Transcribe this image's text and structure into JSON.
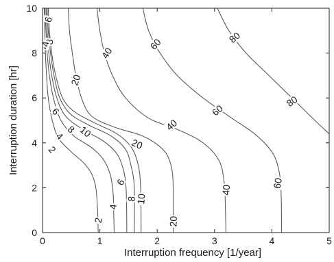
{
  "chart_data": {
    "type": "contour",
    "xlabel": "Interruption frequency [1/year]",
    "ylabel": "Interruption duration [hr]",
    "xlim": [
      0,
      5
    ],
    "ylim": [
      0,
      10
    ],
    "xticks": [
      "0",
      "1",
      "2",
      "3",
      "4",
      "5"
    ],
    "yticks": [
      "0",
      "2",
      "4",
      "6",
      "8",
      "10"
    ],
    "grid": false,
    "contours": [
      {
        "level": "2",
        "points": [
          [
            0.03,
            10
          ],
          [
            0.04,
            9
          ],
          [
            0.05,
            8
          ],
          [
            0.07,
            7
          ],
          [
            0.1,
            6
          ],
          [
            0.17,
            5
          ],
          [
            0.28,
            4.2
          ],
          [
            0.5,
            3.6
          ],
          [
            0.72,
            3.1
          ],
          [
            0.86,
            2.6
          ],
          [
            0.93,
            2.0
          ],
          [
            0.96,
            1.0
          ],
          [
            0.97,
            0
          ]
        ],
        "labels": [
          {
            "text": "2",
            "x": 0.17,
            "y": 3.7,
            "rot": 50
          },
          {
            "text": "2",
            "x": 0.97,
            "y": 0.55,
            "rot": -80
          }
        ]
      },
      {
        "level": "4",
        "points": [
          [
            0.04,
            10
          ],
          [
            0.06,
            9
          ],
          [
            0.08,
            8
          ],
          [
            0.12,
            7
          ],
          [
            0.19,
            6
          ],
          [
            0.32,
            5
          ],
          [
            0.55,
            4.3
          ],
          [
            0.85,
            3.8
          ],
          [
            1.05,
            3.3
          ],
          [
            1.18,
            2.6
          ],
          [
            1.23,
            1.8
          ],
          [
            1.24,
            1.0
          ],
          [
            1.25,
            0
          ]
        ],
        "labels": [
          {
            "text": "4",
            "x": 0.3,
            "y": 4.3,
            "rot": 45
          },
          {
            "text": "4",
            "x": 1.23,
            "y": 1.15,
            "rot": -85
          }
        ]
      },
      {
        "level": "6",
        "points": [
          [
            0.06,
            10
          ],
          [
            0.08,
            9
          ],
          [
            0.11,
            8
          ],
          [
            0.16,
            7
          ],
          [
            0.25,
            6
          ],
          [
            0.4,
            5.2
          ],
          [
            0.7,
            4.6
          ],
          [
            1.05,
            4.1
          ],
          [
            1.3,
            3.5
          ],
          [
            1.42,
            2.7
          ],
          [
            1.46,
            1.8
          ],
          [
            1.47,
            0
          ]
        ],
        "labels": [
          {
            "text": "6",
            "x": 0.1,
            "y": 9.5,
            "rot": -75
          },
          {
            "text": "6",
            "x": 0.23,
            "y": 5.4,
            "rot": 45
          },
          {
            "text": "6",
            "x": 1.36,
            "y": 2.25,
            "rot": -60
          }
        ]
      },
      {
        "level": "8",
        "points": [
          [
            0.08,
            10
          ],
          [
            0.1,
            9
          ],
          [
            0.14,
            8
          ],
          [
            0.2,
            7
          ],
          [
            0.3,
            6
          ],
          [
            0.48,
            5.3
          ],
          [
            0.8,
            4.8
          ],
          [
            1.2,
            4.3
          ],
          [
            1.45,
            3.7
          ],
          [
            1.55,
            2.9
          ],
          [
            1.6,
            2.0
          ],
          [
            1.6,
            0
          ]
        ],
        "labels": [
          {
            "text": "4",
            "x": 0.03,
            "y": 8.3,
            "rot": -80
          },
          {
            "text": "8",
            "x": 0.5,
            "y": 4.6,
            "rot": 40
          },
          {
            "text": "8",
            "x": 1.55,
            "y": 1.5,
            "rot": -85
          }
        ]
      },
      {
        "level": "10",
        "points": [
          [
            0.1,
            10
          ],
          [
            0.12,
            9
          ],
          [
            0.16,
            8
          ],
          [
            0.23,
            7
          ],
          [
            0.35,
            6
          ],
          [
            0.55,
            5.4
          ],
          [
            0.9,
            4.9
          ],
          [
            1.3,
            4.4
          ],
          [
            1.55,
            3.8
          ],
          [
            1.67,
            3.0
          ],
          [
            1.71,
            2.0
          ],
          [
            1.72,
            0
          ]
        ],
        "labels": [
          {
            "text": "10",
            "x": 0.75,
            "y": 4.5,
            "rot": 40
          },
          {
            "text": "10",
            "x": 1.72,
            "y": 1.5,
            "rot": -85
          }
        ]
      },
      {
        "level": "20",
        "points": [
          [
            0.45,
            10
          ],
          [
            0.47,
            9
          ],
          [
            0.52,
            8
          ],
          [
            0.58,
            7
          ],
          [
            0.68,
            6
          ],
          [
            0.85,
            5.2
          ],
          [
            1.25,
            4.7
          ],
          [
            1.75,
            4.3
          ],
          [
            2.1,
            3.7
          ],
          [
            2.24,
            3.0
          ],
          [
            2.28,
            2.0
          ],
          [
            2.28,
            0
          ]
        ],
        "labels": [
          {
            "text": "8",
            "x": 0.12,
            "y": 8.5,
            "rot": -80
          },
          {
            "text": "20",
            "x": 0.58,
            "y": 6.8,
            "rot": -70
          },
          {
            "text": "20",
            "x": 1.65,
            "y": 3.95,
            "rot": 25
          },
          {
            "text": "20",
            "x": 2.28,
            "y": 0.5,
            "rot": -88
          }
        ]
      },
      {
        "level": "40",
        "points": [
          [
            0.95,
            10
          ],
          [
            1.0,
            9
          ],
          [
            1.08,
            8
          ],
          [
            1.22,
            7
          ],
          [
            1.45,
            6
          ],
          [
            1.85,
            5.1
          ],
          [
            2.35,
            4.6
          ],
          [
            2.8,
            4.0
          ],
          [
            3.08,
            3.2
          ],
          [
            3.17,
            2.2
          ],
          [
            3.19,
            1.0
          ],
          [
            3.2,
            0
          ]
        ],
        "labels": [
          {
            "text": "4",
            "x": 0.05,
            "y": 8.4,
            "rot": -80
          },
          {
            "text": "40",
            "x": 1.12,
            "y": 8.0,
            "rot": -60
          },
          {
            "text": "40",
            "x": 2.25,
            "y": 4.8,
            "rot": -40
          },
          {
            "text": "40",
            "x": 3.2,
            "y": 1.9,
            "rot": -85
          }
        ]
      },
      {
        "level": "60",
        "points": [
          [
            1.75,
            10
          ],
          [
            1.85,
            9
          ],
          [
            2.05,
            8
          ],
          [
            2.35,
            7
          ],
          [
            2.8,
            6
          ],
          [
            3.3,
            5.1
          ],
          [
            3.7,
            4.4
          ],
          [
            4.0,
            3.6
          ],
          [
            4.12,
            2.8
          ],
          [
            4.16,
            1.8
          ],
          [
            4.17,
            0
          ]
        ],
        "labels": [
          {
            "text": "60",
            "x": 1.97,
            "y": 8.4,
            "rot": -50
          },
          {
            "text": "60",
            "x": 3.05,
            "y": 5.45,
            "rot": -40
          },
          {
            "text": "60",
            "x": 4.1,
            "y": 2.2,
            "rot": -80
          }
        ]
      },
      {
        "level": "80",
        "points": [
          [
            3.05,
            10
          ],
          [
            3.25,
            9
          ],
          [
            3.55,
            8
          ],
          [
            3.95,
            7
          ],
          [
            4.35,
            6
          ],
          [
            4.75,
            5.0
          ],
          [
            5.0,
            4.4
          ]
        ],
        "labels": [
          {
            "text": "80",
            "x": 3.35,
            "y": 8.7,
            "rot": -40
          },
          {
            "text": "80",
            "x": 4.35,
            "y": 5.85,
            "rot": -35
          }
        ]
      }
    ]
  }
}
